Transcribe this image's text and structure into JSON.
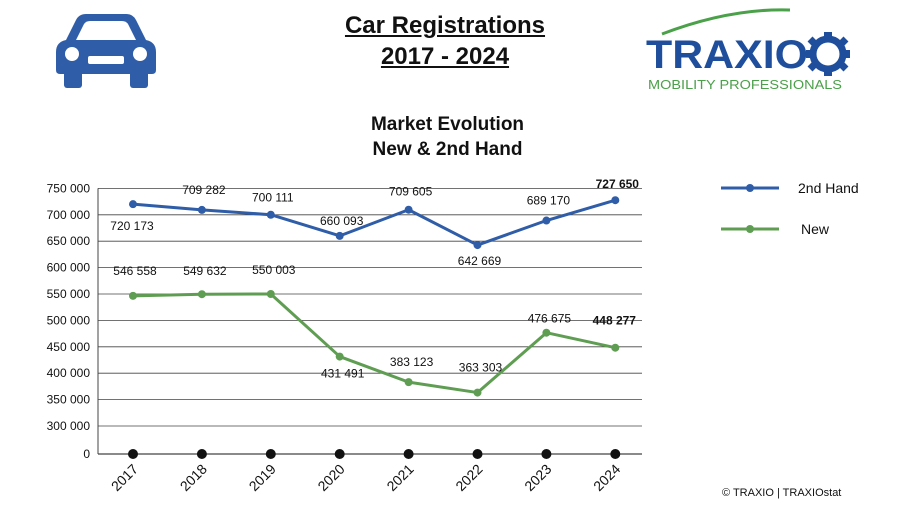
{
  "header": {
    "title_line1": "Car Registrations",
    "title_line2": "2017 - 2024",
    "logo_text": "TRAXIO",
    "logo_tagline": "MOBILITY PROFESSIONALS",
    "car_icon": "car-icon"
  },
  "colors": {
    "second_hand": "#2f5da8",
    "new": "#5f9e52",
    "car_icon": "#2f5da8",
    "logo_blue": "#1f4f9c",
    "logo_green": "#4ba04a"
  },
  "chart_data": {
    "type": "line",
    "title": "Market Evolution\nNew & 2nd Hand",
    "title_line1": "Market Evolution",
    "title_line2": "New & 2nd Hand",
    "categories": [
      "2017",
      "2018",
      "2019",
      "2020",
      "2021",
      "2022",
      "2023",
      "2024"
    ],
    "ylim": [
      0,
      750000
    ],
    "y_ticks": [
      0,
      300000,
      350000,
      400000,
      450000,
      500000,
      550000,
      600000,
      650000,
      700000,
      750000
    ],
    "y_tick_labels": [
      "0",
      "300 000",
      "350 000",
      "400 000",
      "450 000",
      "500 000",
      "550 000",
      "600 000",
      "650 000",
      "700 000",
      "750 000"
    ],
    "axis_break": "0 to 300 000 compressed",
    "grid": true,
    "legend_position": "right",
    "series": [
      {
        "name": "2nd Hand",
        "color": "#2f5da8",
        "values": [
          720173,
          709282,
          700111,
          660093,
          709605,
          642669,
          689170,
          727650
        ],
        "labels": [
          "720 173",
          "709 282",
          "700 111",
          "660 093",
          "709 605",
          "642 669",
          "689 170",
          "727 650"
        ]
      },
      {
        "name": "New",
        "color": "#5f9e52",
        "values": [
          546558,
          549632,
          550003,
          431491,
          383123,
          363303,
          476675,
          448277
        ],
        "labels": [
          "546 558",
          "549 632",
          "550 003",
          "431 491",
          "383 123",
          "363 303",
          "476 675",
          "448 277"
        ]
      }
    ]
  },
  "footer": {
    "credit": "© TRAXIO | TRAXIOstat"
  }
}
